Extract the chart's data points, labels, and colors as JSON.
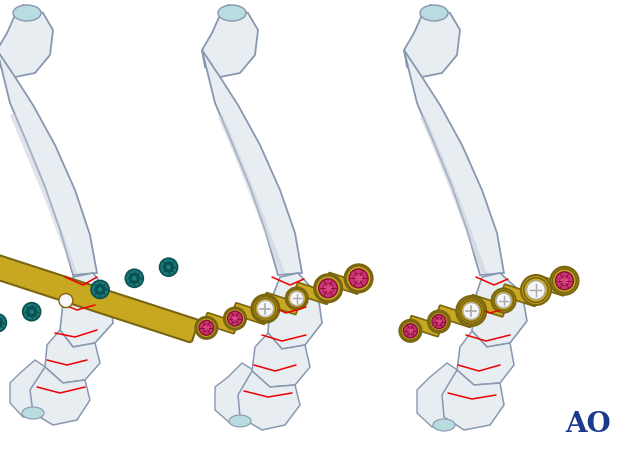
{
  "background_color": "#ffffff",
  "ao_text": "AO",
  "ao_color": "#1a3a8c",
  "ao_fontsize": 20,
  "bone_color": "#e8edf2",
  "bone_outline": "#8898b0",
  "bone_inner": "#d0d8e4",
  "cartilage_color": "#b8dce0",
  "plate_color": "#c8a820",
  "plate_outline": "#7a6510",
  "screw_teal": "#1a7878",
  "screw_teal_dark": "#0a5050",
  "screw_teal_mid": "#158080",
  "screw_pink": "#cc3377",
  "screw_pink_dark": "#881133",
  "screw_pink_mid": "#dd4488",
  "screw_white": "#f5f5f5",
  "screw_white_outline": "#aaaaaa",
  "fracture_color": "#ee0000",
  "shadow_color": "#c5cdd8"
}
